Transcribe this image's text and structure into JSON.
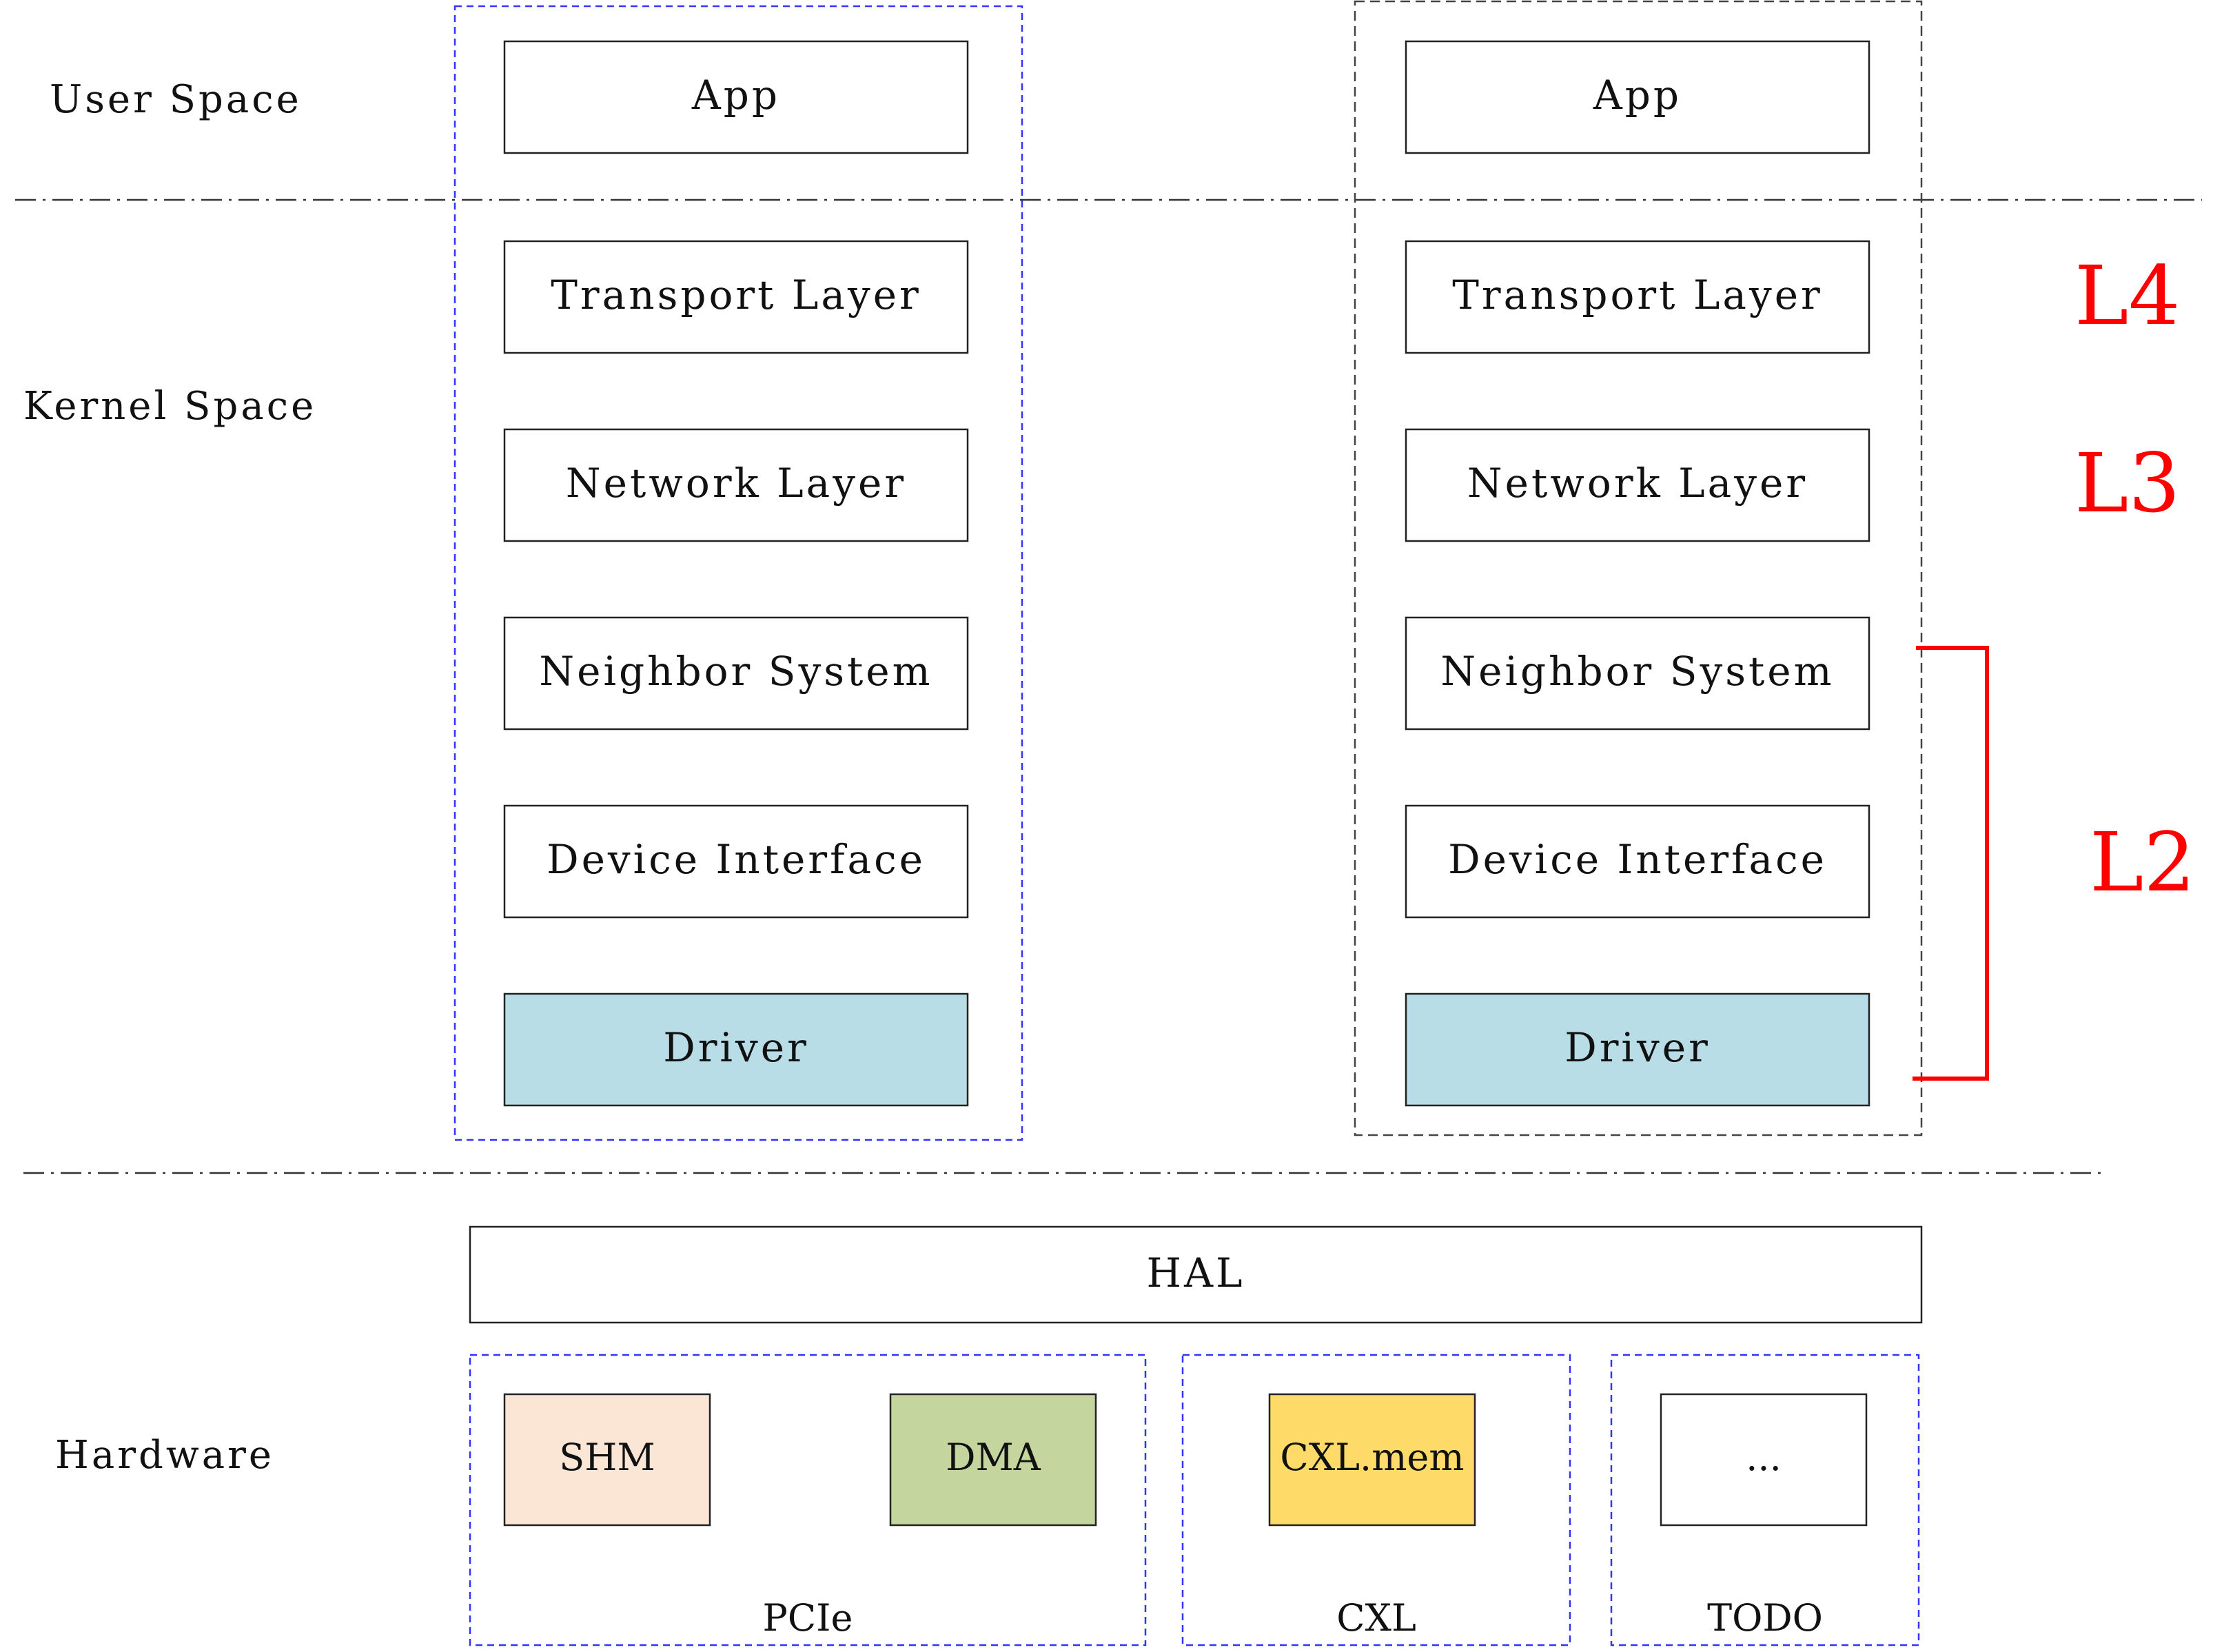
{
  "sections": {
    "user_space": "User Space",
    "kernel_space": "Kernel Space",
    "hardware": "Hardware"
  },
  "stack_left": {
    "layers": [
      "App",
      "Transport Layer",
      "Network Layer",
      "Neighbor System",
      "Device Interface",
      "Driver"
    ]
  },
  "stack_right": {
    "layers": [
      "App",
      "Transport Layer",
      "Network Layer",
      "Neighbor System",
      "Device Interface",
      "Driver"
    ]
  },
  "levels": {
    "l4": "L4",
    "l3": "L3",
    "l2": "L2"
  },
  "hal": "HAL",
  "hardware_groups": {
    "pcie": {
      "label": "PCIe",
      "items": [
        "SHM",
        "DMA"
      ]
    },
    "cxl": {
      "label": "CXL",
      "items": [
        "CXL.mem"
      ]
    },
    "todo": {
      "label": "TODO",
      "items": [
        "..."
      ]
    }
  },
  "colors": {
    "driver": "#b8dde6",
    "shm": "#fbe6d6",
    "dma": "#c4d69e",
    "cxl_mem": "#fedb68",
    "level_red": "#ff0000",
    "group_blue": "#3333ff",
    "group_gray": "#444444"
  }
}
